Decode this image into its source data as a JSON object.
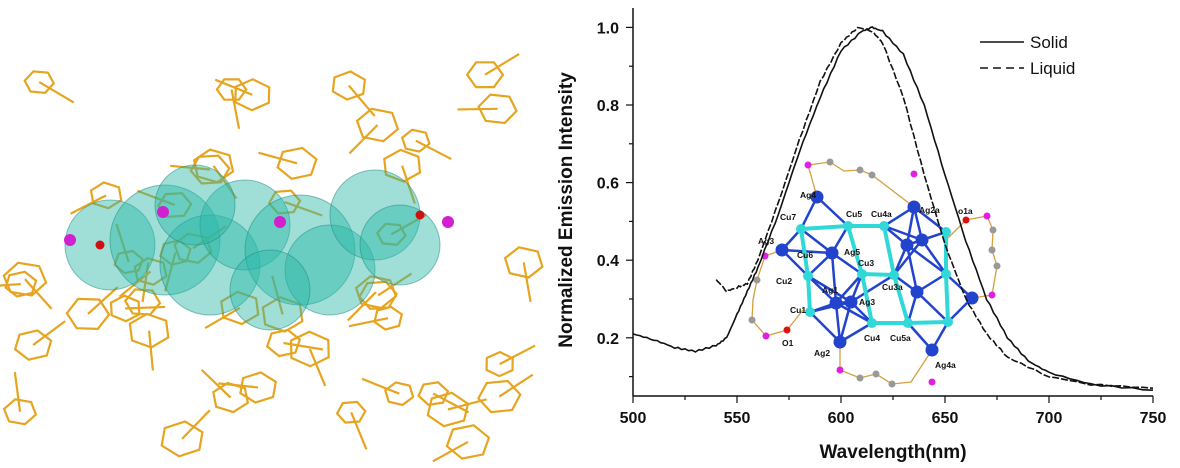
{
  "figure_left": {
    "description_colors": {
      "stick": "#e6a520",
      "sphere": "#2ab8a8",
      "phosphorus": "#d020d0",
      "oxygen": "#d01010"
    }
  },
  "chart_data": {
    "type": "line",
    "title": "",
    "xlabel": "Wavelength(nm)",
    "ylabel": "Normalized Emission Intensity",
    "xlim": [
      500,
      750
    ],
    "ylim": [
      0.05,
      1.05
    ],
    "xticks": [
      500,
      550,
      600,
      650,
      700,
      750
    ],
    "yticks": [
      0.2,
      0.4,
      0.6,
      0.8,
      1.0
    ],
    "ytick_labels": [
      "0.2",
      "0.4",
      "0.6",
      "0.8",
      "1.0"
    ],
    "grid": false,
    "legend": "top-right",
    "series": [
      {
        "name": "Solid",
        "style": "solid",
        "color": "#111111",
        "x": [
          500,
          510,
          520,
          530,
          540,
          545,
          550,
          555,
          560,
          570,
          580,
          590,
          600,
          610,
          615,
          620,
          630,
          640,
          650,
          660,
          670,
          680,
          690,
          700,
          720,
          750
        ],
        "y": [
          0.21,
          0.195,
          0.175,
          0.165,
          0.18,
          0.2,
          0.26,
          0.32,
          0.38,
          0.52,
          0.68,
          0.82,
          0.94,
          0.99,
          1.0,
          0.99,
          0.93,
          0.8,
          0.62,
          0.45,
          0.3,
          0.2,
          0.14,
          0.11,
          0.08,
          0.065
        ]
      },
      {
        "name": "Liquid",
        "style": "dashed",
        "color": "#111111",
        "x": [
          540,
          545,
          550,
          555,
          560,
          570,
          580,
          590,
          600,
          608,
          615,
          620,
          630,
          640,
          650,
          660,
          670,
          680,
          700,
          720,
          750
        ],
        "y": [
          0.35,
          0.32,
          0.33,
          0.34,
          0.4,
          0.55,
          0.71,
          0.86,
          0.96,
          1.0,
          0.99,
          0.96,
          0.82,
          0.62,
          0.44,
          0.3,
          0.21,
          0.15,
          0.1,
          0.08,
          0.07
        ]
      }
    ]
  },
  "inset": {
    "labels": [
      "Ag4",
      "Cu7",
      "Cu5",
      "Cu4a",
      "Ag2a",
      "o1a",
      "Ag3",
      "Cu6",
      "Ag5",
      "Cu3",
      "Cu2",
      "Ag1",
      "Cu3a",
      "Ag3",
      "Cu1",
      "O1",
      "Cu4",
      "Cu5a",
      "Ag2",
      "Ag4a"
    ],
    "colors": {
      "ag": "#2244cc",
      "cu": "#30d8d8",
      "p": "#e020e0",
      "c": "#999999",
      "o": "#dd1111",
      "link": "#d4a040"
    }
  }
}
